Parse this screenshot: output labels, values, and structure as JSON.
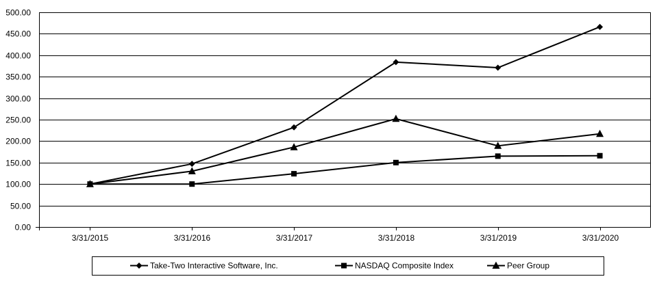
{
  "chart_data": {
    "type": "line",
    "title": "",
    "xlabel": "",
    "ylabel": "",
    "categories": [
      "3/31/2015",
      "3/31/2016",
      "3/31/2017",
      "3/31/2018",
      "3/31/2019",
      "3/31/2020"
    ],
    "ylim": [
      0,
      500
    ],
    "yticks": [
      "0.00",
      "50.00",
      "100.00",
      "150.00",
      "200.00",
      "250.00",
      "300.00",
      "350.00",
      "400.00",
      "450.00",
      "500.00"
    ],
    "grid": true,
    "legend_position": "bottom",
    "series": [
      {
        "name": "Take-Two Interactive Software, Inc.",
        "marker": "diamond",
        "values": [
          100,
          147,
          232,
          384,
          371,
          466
        ]
      },
      {
        "name": "NASDAQ Composite Index",
        "marker": "square",
        "values": [
          100,
          100,
          124,
          150,
          165,
          166
        ]
      },
      {
        "name": "Peer Group",
        "marker": "triangle",
        "values": [
          100,
          130,
          186,
          252,
          189,
          217
        ]
      }
    ]
  }
}
